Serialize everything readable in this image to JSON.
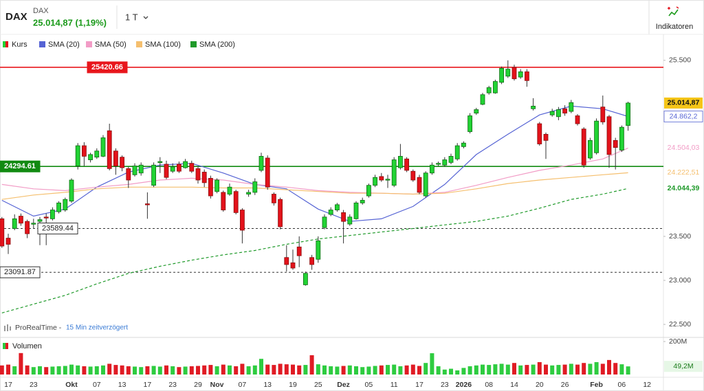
{
  "header": {
    "symbol": "DAX",
    "name": "DAX",
    "quote": "25.014,87 (1,19%)",
    "interval": "1 T",
    "button": "Indikatoren"
  },
  "chart_data": {
    "type": "candlestick",
    "source": "ProRealTime -",
    "delay": "15 Min zeitverzögert",
    "categories": [
      null,
      "17",
      null,
      null,
      null,
      "23",
      null,
      null,
      null,
      null,
      null,
      "Okt",
      null,
      null,
      null,
      "07",
      null,
      null,
      null,
      "13",
      null,
      null,
      null,
      "17",
      null,
      null,
      null,
      "23",
      null,
      null,
      null,
      "29",
      null,
      null,
      "Nov",
      null,
      null,
      null,
      "07",
      null,
      null,
      null,
      "13",
      null,
      null,
      null,
      "19",
      null,
      null,
      null,
      "25",
      null,
      null,
      null,
      "Dez",
      null,
      null,
      null,
      "05",
      null,
      null,
      null,
      "11",
      null,
      null,
      null,
      "17",
      null,
      null,
      null,
      "23",
      null,
      null,
      "2026",
      null,
      null,
      null,
      "08",
      null,
      null,
      null,
      "14",
      null,
      null,
      null,
      "20",
      null,
      null,
      null,
      "26",
      null,
      null,
      null,
      null,
      "Feb",
      null,
      null,
      null,
      "06",
      null,
      null,
      null,
      "12"
    ],
    "ylim": [
      22360,
      25600
    ],
    "yticks": [
      {
        "value": 25500,
        "label": "25.500"
      },
      {
        "value": 23500,
        "label": "23.500"
      },
      {
        "value": 23000,
        "label": "23.000"
      },
      {
        "value": 22500,
        "label": "22.500"
      }
    ],
    "y2lim": [
      0,
      200
    ],
    "y2ticks": [
      {
        "value": 200,
        "label": "200M"
      }
    ],
    "levels": [
      {
        "value": 25420.66,
        "color": "#e8161c",
        "style": "solid"
      },
      {
        "value": 24294.61,
        "color": "#118a11",
        "style": "solid"
      },
      {
        "value": 23589.44,
        "color": "#333333",
        "style": "dashed"
      },
      {
        "value": 23091.87,
        "color": "#333333",
        "style": "dashed"
      }
    ],
    "series": [
      {
        "name": "Kurs",
        "type": "candlestick",
        "up_color": "#22d334",
        "down_color": "#e3121b",
        "last_label": "25.014,87",
        "open": [
          23700,
          23480,
          23590,
          23730,
          23670,
          23640,
          23670,
          23720,
          23700,
          23780,
          23800,
          23900,
          24300,
          24530,
          24370,
          24400,
          24410,
          24700,
          24470,
          24400,
          24270,
          24200,
          24220,
          23870,
          24080,
          24340,
          24320,
          24240,
          24320,
          24280,
          24330,
          24270,
          24230,
          24160,
          24010,
          24000,
          23980,
          24010,
          23800,
          23980,
          24000,
          24250,
          24390,
          23980,
          23920,
          23260,
          23200,
          23380,
          22950,
          23260,
          23240,
          23600,
          23750,
          23800,
          23770,
          23640,
          23700,
          23880,
          23960,
          24080,
          24180,
          24140,
          24080,
          24280,
          24380,
          24240,
          24170,
          23960,
          24220,
          24320,
          24310,
          24340,
          24380,
          24520,
          24690,
          24900,
          25000,
          25130,
          25130,
          25250,
          25320,
          25420,
          25310,
          25370,
          24950,
          24780,
          24660,
          24880,
          24860,
          24950,
          24920,
          24870,
          24720,
          24390,
          24450,
          24970,
          24860,
          24590,
          24480,
          24760,
          null,
          null,
          null
        ],
        "high": [
          23720,
          23530,
          23750,
          23760,
          23690,
          23700,
          23720,
          23760,
          23830,
          23900,
          23940,
          24160,
          24560,
          24570,
          24450,
          24500,
          24650,
          24780,
          24500,
          24420,
          24290,
          24330,
          24340,
          24000,
          24340,
          24400,
          24360,
          24330,
          24350,
          24380,
          24360,
          24300,
          24260,
          24190,
          24160,
          24020,
          24100,
          24030,
          23820,
          24030,
          24160,
          24450,
          24420,
          24000,
          23940,
          23400,
          23350,
          23500,
          23100,
          23290,
          23500,
          23750,
          23830,
          23880,
          23800,
          23750,
          23900,
          23940,
          24100,
          24200,
          24220,
          24200,
          24400,
          24550,
          24400,
          24260,
          24200,
          24240,
          24340,
          24350,
          24400,
          24440,
          24560,
          24580,
          24900,
          24960,
          25130,
          25210,
          25280,
          25430,
          25500,
          25450,
          25400,
          25400,
          25070,
          24800,
          24680,
          24950,
          24970,
          24990,
          25050,
          24890,
          24740,
          24620,
          24840,
          25100,
          24880,
          24620,
          24760,
          25030,
          null,
          null,
          null
        ],
        "low": [
          23370,
          23300,
          23570,
          23620,
          23480,
          23590,
          23400,
          23400,
          23680,
          23760,
          23780,
          23880,
          24260,
          24300,
          24340,
          24380,
          24400,
          24250,
          24200,
          24240,
          24050,
          24180,
          24190,
          23700,
          24060,
          24220,
          24150,
          24220,
          24220,
          24270,
          24220,
          24100,
          24060,
          23930,
          23990,
          23780,
          23960,
          23750,
          23420,
          23950,
          23970,
          24230,
          24030,
          23850,
          23580,
          23100,
          23120,
          23150,
          22940,
          23120,
          23200,
          23580,
          23730,
          23780,
          23420,
          23620,
          23690,
          23860,
          23940,
          24060,
          24120,
          24050,
          24060,
          24260,
          24230,
          24120,
          23980,
          23940,
          24200,
          24300,
          24290,
          24320,
          24360,
          24500,
          24670,
          24880,
          24990,
          25110,
          25120,
          25230,
          25300,
          25270,
          25290,
          25200,
          24930,
          24530,
          24380,
          24860,
          24820,
          24870,
          24900,
          24760,
          24280,
          24370,
          24430,
          24770,
          24280,
          24260,
          24460,
          24700,
          null,
          null,
          null
        ],
        "close": [
          23390,
          23410,
          23700,
          23650,
          23530,
          23650,
          23690,
          23710,
          23800,
          23880,
          23920,
          24140,
          24530,
          24410,
          24430,
          24470,
          24620,
          24270,
          24300,
          24280,
          24140,
          24300,
          24310,
          23860,
          24310,
          24350,
          24170,
          24290,
          24240,
          24350,
          24240,
          24140,
          24110,
          23960,
          24140,
          23800,
          24060,
          23770,
          23570,
          24000,
          24120,
          24410,
          24060,
          23880,
          23610,
          23180,
          23140,
          23280,
          23080,
          23180,
          23450,
          23720,
          23800,
          23860,
          23670,
          23720,
          23880,
          23910,
          24080,
          24170,
          24140,
          24150,
          24370,
          24410,
          24250,
          24140,
          24000,
          24220,
          24310,
          24330,
          24370,
          24410,
          24530,
          24560,
          24870,
          24940,
          25110,
          25190,
          25260,
          25410,
          25400,
          25290,
          25370,
          25270,
          24980,
          24550,
          24590,
          24920,
          24940,
          24900,
          25020,
          24780,
          24310,
          24590,
          24810,
          24800,
          24430,
          24510,
          24740,
          25014.87,
          null,
          null,
          null
        ]
      },
      {
        "name": "SMA (20)",
        "type": "line",
        "color": "#5563d4",
        "last_label": "24.862,2",
        "x": [
          0,
          5,
          10,
          15,
          20,
          25,
          30,
          35,
          40,
          45,
          50,
          55,
          60,
          65,
          70,
          75,
          80,
          85,
          90,
          95,
          99
        ],
        "values": [
          23910,
          23730,
          23810,
          24060,
          24230,
          24310,
          24330,
          24220,
          24090,
          24040,
          23810,
          23670,
          23700,
          23840,
          24090,
          24430,
          24660,
          24880,
          24980,
          24950,
          24862.2
        ]
      },
      {
        "name": "SMA (50)",
        "type": "line",
        "color": "#f29cc6",
        "last_label": "24.504,03",
        "x": [
          0,
          5,
          10,
          15,
          20,
          25,
          30,
          35,
          40,
          45,
          50,
          55,
          60,
          65,
          70,
          75,
          80,
          85,
          90,
          95,
          99
        ],
        "values": [
          24090,
          24040,
          24020,
          24060,
          24090,
          24140,
          24160,
          24140,
          24090,
          24060,
          24020,
          24000,
          23990,
          23980,
          24000,
          24080,
          24170,
          24250,
          24310,
          24380,
          24504.03
        ]
      },
      {
        "name": "SMA (100)",
        "type": "line",
        "color": "#f5bf6e",
        "last_label": "24.222,51",
        "x": [
          0,
          5,
          10,
          15,
          20,
          25,
          30,
          35,
          40,
          45,
          50,
          55,
          60,
          65,
          70,
          75,
          80,
          85,
          90,
          95,
          99
        ],
        "values": [
          23920,
          23970,
          24000,
          24040,
          24060,
          24060,
          24060,
          24050,
          24050,
          24030,
          24010,
          23990,
          23990,
          23980,
          23990,
          24040,
          24100,
          24140,
          24170,
          24200,
          24222.51
        ]
      },
      {
        "name": "SMA (200)",
        "type": "line",
        "color": "#1f9a2a",
        "dashed": true,
        "last_label": "24.044,39",
        "x": [
          0,
          5,
          10,
          15,
          20,
          25,
          30,
          35,
          40,
          45,
          50,
          55,
          60,
          65,
          70,
          75,
          80,
          85,
          90,
          95,
          99
        ],
        "values": [
          22630,
          22730,
          22830,
          22960,
          23080,
          23160,
          23230,
          23290,
          23340,
          23410,
          23470,
          23510,
          23550,
          23590,
          23630,
          23670,
          23730,
          23820,
          23920,
          23980,
          24044.39
        ]
      },
      {
        "name": "Volumen",
        "type": "bar",
        "axis": "y2",
        "last_label": "49,2M",
        "values": [
          55,
          60,
          50,
          130,
          55,
          45,
          50,
          45,
          48,
          50,
          52,
          60,
          55,
          50,
          48,
          50,
          55,
          65,
          58,
          55,
          50,
          48,
          45,
          50,
          52,
          48,
          55,
          50,
          45,
          48,
          50,
          52,
          55,
          58,
          50,
          60,
          55,
          50,
          65,
          50,
          55,
          95,
          60,
          58,
          65,
          62,
          60,
          55,
          58,
          117,
          62,
          55,
          50,
          48,
          52,
          55,
          50,
          45,
          48,
          52,
          55,
          58,
          60,
          50,
          55,
          60,
          52,
          70,
          129,
          50,
          30,
          35,
          25,
          40,
          50,
          55,
          60,
          58,
          62,
          65,
          60,
          70,
          55,
          58,
          60,
          75,
          60,
          55,
          58,
          60,
          65,
          60,
          70,
          65,
          75,
          65,
          88,
          70,
          62,
          49.2,
          null,
          null,
          null
        ]
      }
    ]
  }
}
